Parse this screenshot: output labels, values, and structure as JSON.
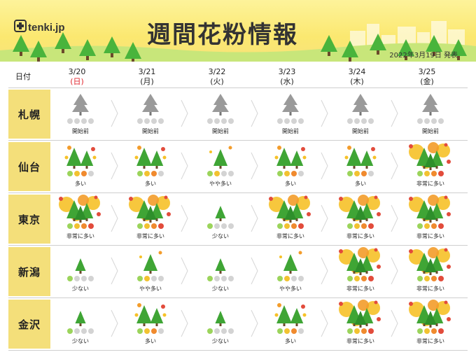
{
  "header": {
    "logo": "tenki.jp",
    "title": "週間花粉情報",
    "published": "2022年3月19日 発表"
  },
  "table": {
    "row_header": "日付",
    "days": [
      {
        "date": "3/20",
        "dow": "(日)"
      },
      {
        "date": "3/21",
        "dow": "(月)"
      },
      {
        "date": "3/22",
        "dow": "(火)"
      },
      {
        "date": "3/23",
        "dow": "(水)"
      },
      {
        "date": "3/24",
        "dow": "(木)"
      },
      {
        "date": "3/25",
        "dow": "(金)"
      }
    ]
  },
  "colors": {
    "sunday": "#e0262e",
    "city_bg": "#f4df7a",
    "level_dots": [
      "#9bd45b",
      "#f2c230",
      "#f08a2e",
      "#e24b3b"
    ],
    "inactive_dot": "#d3d3d3"
  },
  "levels": {
    "0": "開始前",
    "1": "少ない",
    "2": "やや多い",
    "3": "多い",
    "4": "非常に多い"
  },
  "chart_data": {
    "type": "table",
    "title": "週間花粉情報",
    "columns": [
      "3/20 (日)",
      "3/21 (月)",
      "3/22 (火)",
      "3/23 (水)",
      "3/24 (木)",
      "3/25 (金)"
    ],
    "rows": [
      {
        "city": "札幌",
        "levels": [
          0,
          0,
          0,
          0,
          0,
          0
        ]
      },
      {
        "city": "仙台",
        "levels": [
          3,
          3,
          2,
          3,
          3,
          4
        ]
      },
      {
        "city": "東京",
        "levels": [
          4,
          4,
          1,
          4,
          4,
          4
        ]
      },
      {
        "city": "新潟",
        "levels": [
          1,
          2,
          1,
          2,
          4,
          4
        ]
      },
      {
        "city": "金沢",
        "levels": [
          1,
          3,
          1,
          3,
          4,
          4
        ]
      }
    ]
  }
}
